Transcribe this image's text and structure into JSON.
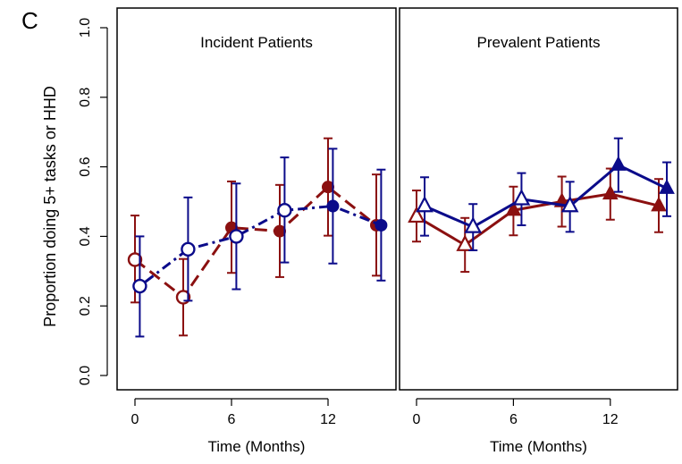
{
  "figure": {
    "panel_letter": "C",
    "ylabel": "Proportion doing 5+ tasks or HHD"
  },
  "colors": {
    "red": "#8b1010",
    "blue": "#0b0b8a"
  },
  "chart_data": [
    {
      "type": "line",
      "title": "Incident Patients",
      "xlabel": "Time (Months)",
      "ylabel": "Proportion doing 5+ tasks or HHD",
      "xticks": [
        0,
        6,
        12
      ],
      "yticks": [
        "0.0",
        "0.2",
        "0.4",
        "0.6",
        "0.8",
        "1.0"
      ],
      "xlim": [
        -1,
        16
      ],
      "ylim": [
        0,
        1
      ],
      "series": [
        {
          "color": "red",
          "line_style": "dashed",
          "points": [
            {
              "x": 0,
              "y": 0.333,
              "lo": 0.21,
              "hi": 0.46,
              "marker": "open-circle"
            },
            {
              "x": 3,
              "y": 0.225,
              "lo": 0.115,
              "hi": 0.335,
              "marker": "open-circle"
            },
            {
              "x": 6,
              "y": 0.425,
              "lo": 0.295,
              "hi": 0.558,
              "marker": "filled-circle"
            },
            {
              "x": 9,
              "y": 0.415,
              "lo": 0.283,
              "hi": 0.548,
              "marker": "filled-circle"
            },
            {
              "x": 12,
              "y": 0.542,
              "lo": 0.402,
              "hi": 0.682,
              "marker": "filled-circle"
            },
            {
              "x": 15,
              "y": 0.432,
              "lo": 0.287,
              "hi": 0.578,
              "marker": "filled-circle"
            }
          ]
        },
        {
          "color": "blue",
          "line_style": "dotdash",
          "points": [
            {
              "x": 0.3,
              "y": 0.257,
              "lo": 0.112,
              "hi": 0.4,
              "marker": "open-circle"
            },
            {
              "x": 3.3,
              "y": 0.363,
              "lo": 0.215,
              "hi": 0.512,
              "marker": "open-circle"
            },
            {
              "x": 6.3,
              "y": 0.4,
              "lo": 0.248,
              "hi": 0.552,
              "marker": "open-circle"
            },
            {
              "x": 9.3,
              "y": 0.475,
              "lo": 0.325,
              "hi": 0.627,
              "marker": "open-circle"
            },
            {
              "x": 12.3,
              "y": 0.487,
              "lo": 0.322,
              "hi": 0.652,
              "marker": "filled-circle"
            },
            {
              "x": 15.3,
              "y": 0.432,
              "lo": 0.273,
              "hi": 0.592,
              "marker": "filled-circle"
            }
          ]
        }
      ]
    },
    {
      "type": "line",
      "title": "Prevalent Patients",
      "xlabel": "Time (Months)",
      "xticks": [
        0,
        6,
        12
      ],
      "xlim": [
        -1,
        16
      ],
      "ylim": [
        0,
        1
      ],
      "series": [
        {
          "color": "red",
          "line_style": "solid",
          "points": [
            {
              "x": 0,
              "y": 0.457,
              "lo": 0.385,
              "hi": 0.532,
              "marker": "open-triangle"
            },
            {
              "x": 3,
              "y": 0.375,
              "lo": 0.298,
              "hi": 0.453,
              "marker": "open-triangle"
            },
            {
              "x": 6,
              "y": 0.475,
              "lo": 0.403,
              "hi": 0.543,
              "marker": "filled-triangle"
            },
            {
              "x": 9,
              "y": 0.5,
              "lo": 0.428,
              "hi": 0.572,
              "marker": "filled-triangle"
            },
            {
              "x": 12,
              "y": 0.522,
              "lo": 0.448,
              "hi": 0.595,
              "marker": "filled-triangle"
            },
            {
              "x": 15,
              "y": 0.488,
              "lo": 0.412,
              "hi": 0.565,
              "marker": "filled-triangle"
            }
          ]
        },
        {
          "color": "blue",
          "line_style": "solid",
          "points": [
            {
              "x": 0.5,
              "y": 0.487,
              "lo": 0.402,
              "hi": 0.57,
              "marker": "open-triangle"
            },
            {
              "x": 3.5,
              "y": 0.427,
              "lo": 0.36,
              "hi": 0.493,
              "marker": "open-triangle"
            },
            {
              "x": 6.5,
              "y": 0.507,
              "lo": 0.432,
              "hi": 0.582,
              "marker": "open-triangle"
            },
            {
              "x": 9.5,
              "y": 0.487,
              "lo": 0.413,
              "hi": 0.557,
              "marker": "open-triangle"
            },
            {
              "x": 12.5,
              "y": 0.605,
              "lo": 0.528,
              "hi": 0.682,
              "marker": "filled-triangle"
            },
            {
              "x": 15.5,
              "y": 0.538,
              "lo": 0.458,
              "hi": 0.613,
              "marker": "filled-triangle"
            }
          ]
        }
      ]
    }
  ]
}
